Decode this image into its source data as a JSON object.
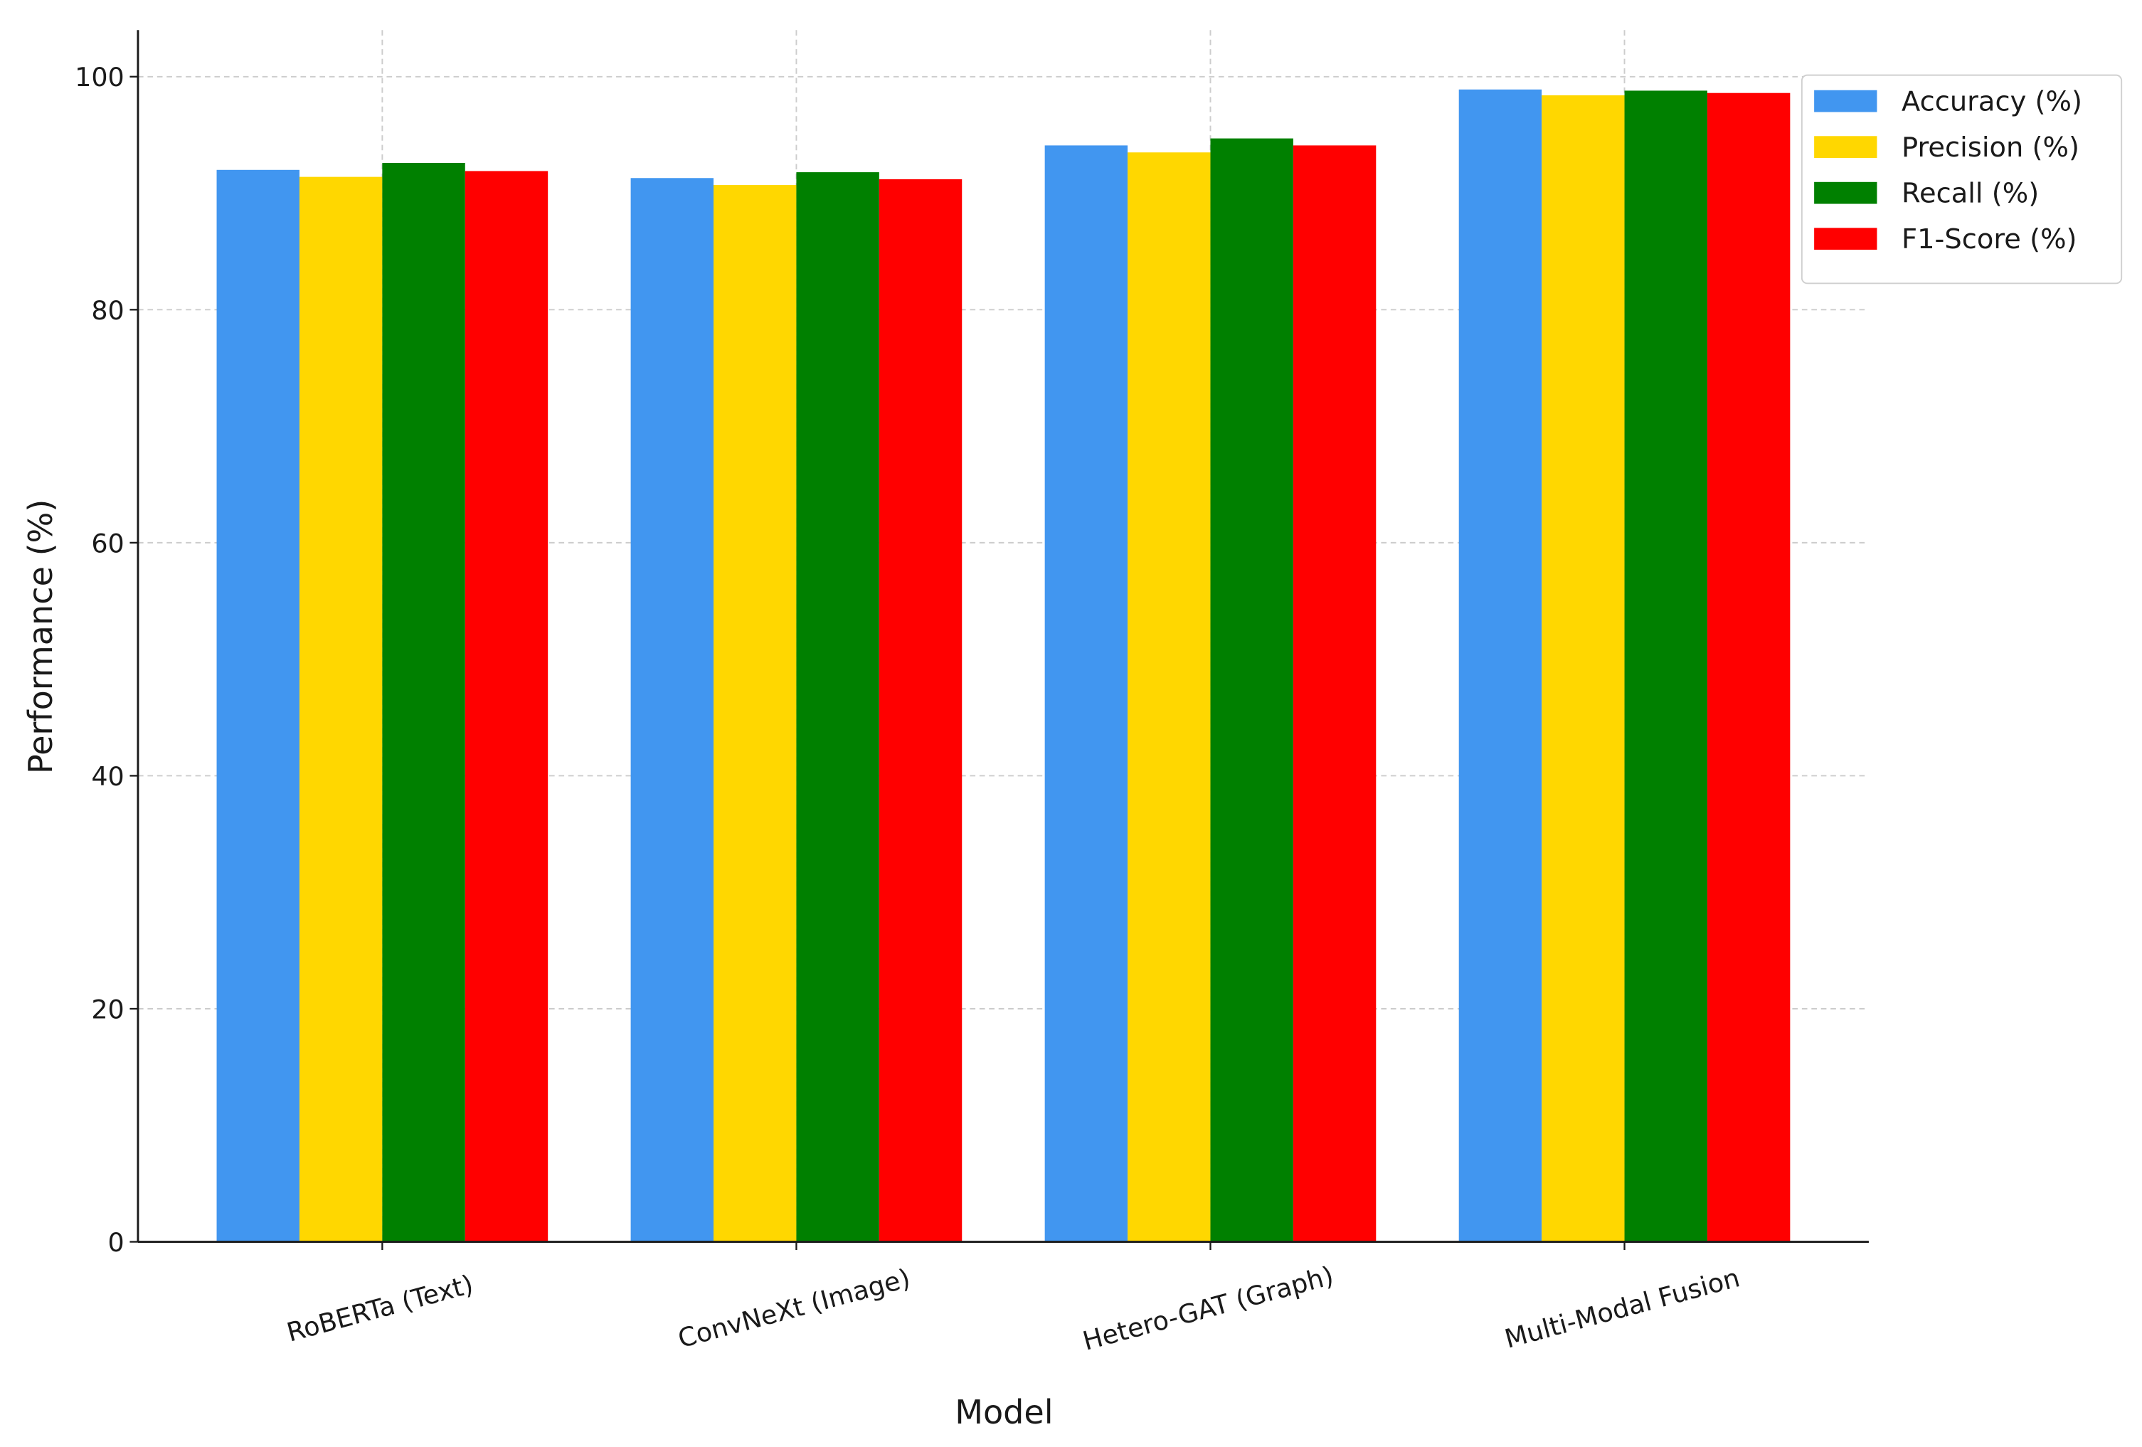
{
  "chart_data": {
    "type": "bar",
    "x_label": "Model",
    "y_label": "Performance (%)",
    "categories": [
      "RoBERTa (Text)",
      "ConvNeXt (Image)",
      "Hetero-GAT (Graph)",
      "Multi-Modal Fusion"
    ],
    "series": [
      {
        "name": "Accuracy (%)",
        "color": "#4196f0",
        "values": [
          92.0,
          91.3,
          94.1,
          98.9
        ]
      },
      {
        "name": "Precision (%)",
        "color": "#ffd700",
        "values": [
          91.4,
          90.7,
          93.5,
          98.4
        ]
      },
      {
        "name": "Recall (%)",
        "color": "#008000",
        "values": [
          92.6,
          91.8,
          94.7,
          98.8
        ]
      },
      {
        "name": "F1-Score (%)",
        "color": "#ff0000",
        "values": [
          91.9,
          91.2,
          94.1,
          98.6
        ]
      }
    ],
    "ylim": [
      0,
      104
    ],
    "yticks": [
      0,
      20,
      40,
      60,
      80,
      100
    ],
    "grid": true,
    "legend": "outside upper right"
  }
}
